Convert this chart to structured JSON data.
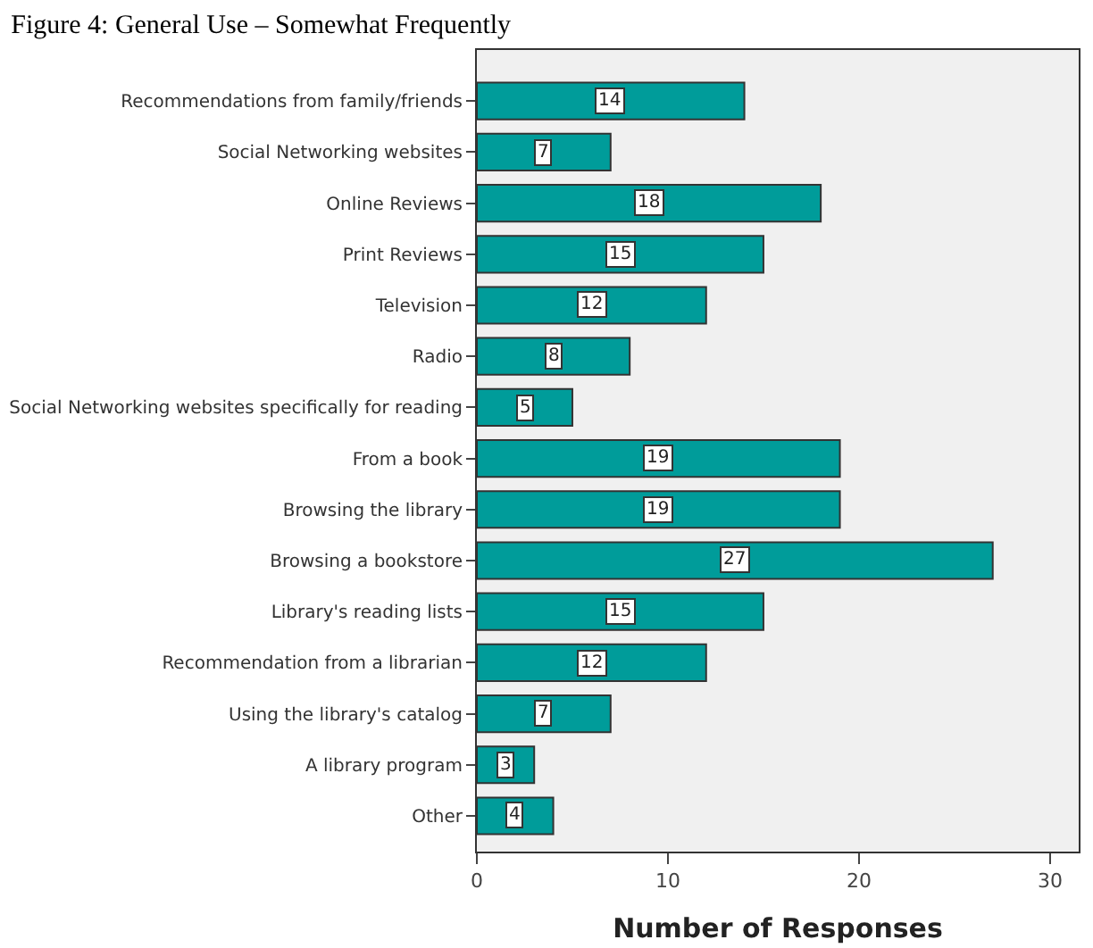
{
  "chart_data": {
    "type": "bar",
    "orientation": "horizontal",
    "title": "Figure 4: General Use – Somewhat Frequently",
    "xlabel": "Number of Responses",
    "categories": [
      "Recommendations from family/friends",
      "Social Networking websites",
      "Online Reviews",
      "Print Reviews",
      "Television",
      "Radio",
      "Social Networking websites specifically for reading",
      "From a book",
      "Browsing the library",
      "Browsing a bookstore",
      "Library's reading lists",
      "Recommendation from a librarian",
      "Using the library's catalog",
      "A library program",
      "Other"
    ],
    "values": [
      14,
      7,
      18,
      15,
      12,
      8,
      5,
      19,
      19,
      27,
      15,
      12,
      7,
      3,
      4
    ],
    "color": "#009c9a",
    "xlim": [
      0,
      31.5
    ],
    "xticks": [
      0,
      10,
      20,
      30
    ],
    "data_labels": true
  }
}
